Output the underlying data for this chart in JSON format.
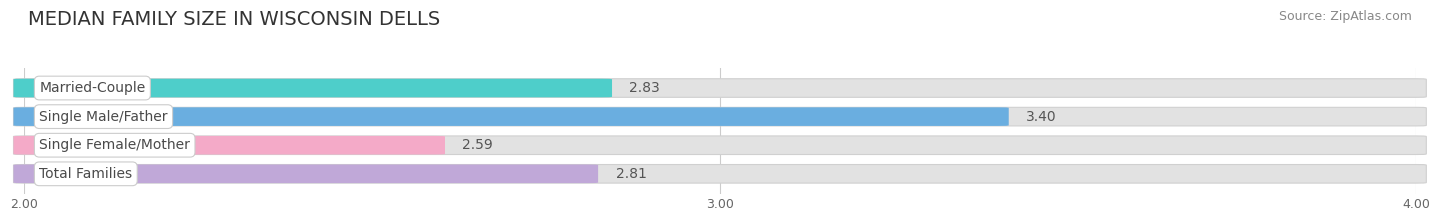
{
  "title": "MEDIAN FAMILY SIZE IN WISCONSIN DELLS",
  "source": "Source: ZipAtlas.com",
  "categories": [
    "Married-Couple",
    "Single Male/Father",
    "Single Female/Mother",
    "Total Families"
  ],
  "values": [
    2.83,
    3.4,
    2.59,
    2.81
  ],
  "bar_colors": [
    "#4ececa",
    "#6aaee0",
    "#f4aac8",
    "#c0a8d8"
  ],
  "xlim": [
    2.0,
    4.0
  ],
  "xticks": [
    2.0,
    3.0,
    4.0
  ],
  "xtick_labels": [
    "2.00",
    "3.00",
    "4.00"
  ],
  "background_color": "#ffffff",
  "bar_bg_color": "#e8e8e8",
  "title_fontsize": 14,
  "source_fontsize": 9,
  "label_fontsize": 10,
  "value_fontsize": 10
}
